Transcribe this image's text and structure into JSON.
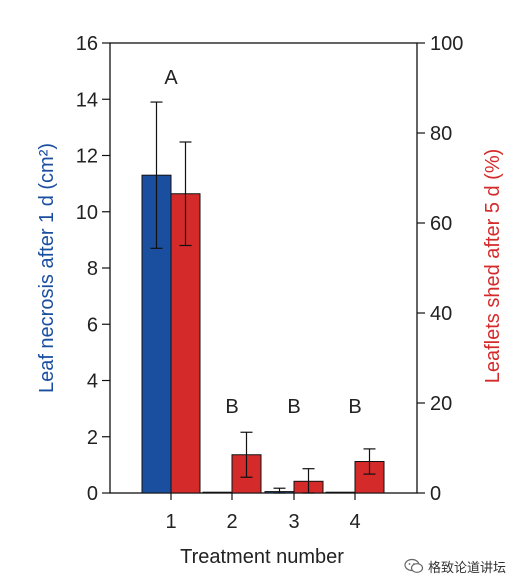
{
  "chart_data": {
    "type": "bar",
    "categories": [
      "1",
      "2",
      "3",
      "4"
    ],
    "xlabel": "Treatment number",
    "y_left": {
      "label": "Leaf necrosis after 1 d (cm²)",
      "ylim": [
        0,
        16
      ],
      "ticks": [
        0,
        2,
        4,
        6,
        8,
        10,
        12,
        14,
        16
      ],
      "color": "#1a4fa0"
    },
    "y_right": {
      "label": "Leaflets shed after 5 d (%)",
      "ylim": [
        0,
        100
      ],
      "ticks": [
        0,
        20,
        40,
        60,
        80,
        100
      ],
      "color": "#d42a2a"
    },
    "series": [
      {
        "axis": "left",
        "color": "#1a4fa0",
        "values": [
          11.3,
          0.02,
          0.05,
          0.02
        ],
        "errors": [
          2.6,
          0,
          0.12,
          0
        ]
      },
      {
        "axis": "right",
        "color": "#d42a2a",
        "values": [
          66.5,
          8.5,
          2.6,
          7.0
        ],
        "errors": [
          11.5,
          5.0,
          2.8,
          2.8
        ]
      }
    ],
    "annotations": [
      "A",
      "B",
      "B",
      "B"
    ],
    "grid": false
  },
  "watermark": {
    "text": "格致论道讲坛",
    "icon": "wechat-icon"
  }
}
